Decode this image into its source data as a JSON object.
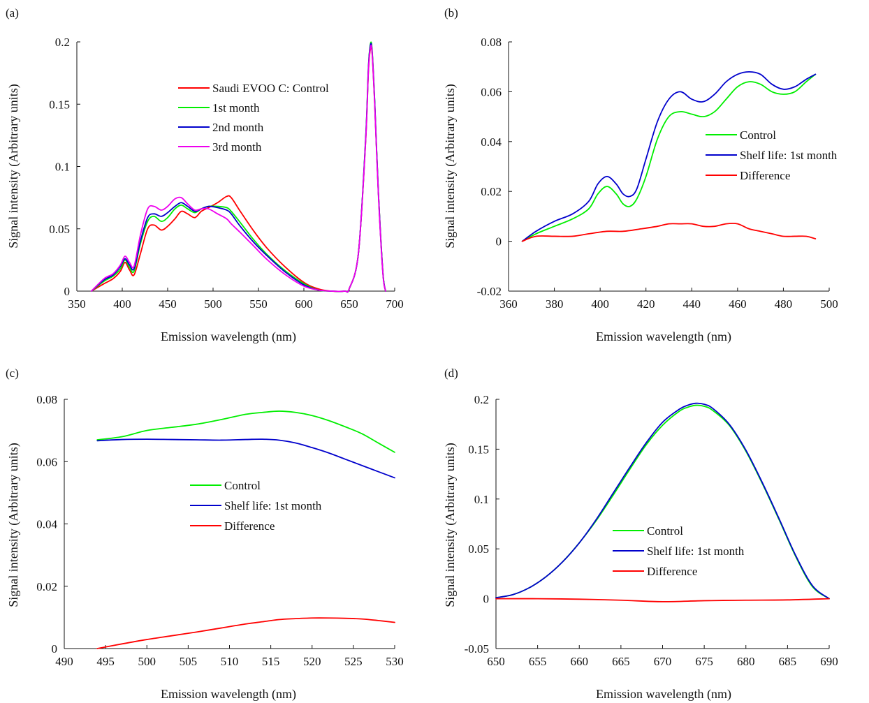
{
  "colors": {
    "control": "#ff0000",
    "first_month": "#00ee00",
    "second_month": "#0000cc",
    "third_month": "#ee00ee",
    "green": "#00ee00",
    "blue": "#0000cc",
    "red": "#ff0000"
  },
  "chart_data": [
    {
      "panel": "(a)",
      "type": "line",
      "xlabel": "Emission wavelength (nm)",
      "ylabel": "Signal intensity (Arbitrary units)",
      "xlim": [
        350,
        700
      ],
      "ylim": [
        0,
        0.2
      ],
      "xticks": [
        350,
        400,
        450,
        500,
        550,
        600,
        650,
        700
      ],
      "yticks": [
        0,
        0.05,
        0.1,
        0.15,
        0.2
      ],
      "xtick_labels": [
        "350",
        "400",
        "450",
        "500",
        "550",
        "600",
        "650",
        "700"
      ],
      "ytick_labels": [
        "0",
        "0.05",
        "0.1",
        "0.15",
        "0.2"
      ],
      "legend_position": "upper-center",
      "series": [
        {
          "name": "Saudi EVOO C: Control",
          "color": "#ff0000",
          "x": [
            366,
            380,
            390,
            398,
            403,
            408,
            413,
            420,
            428,
            435,
            443,
            450,
            458,
            465,
            472,
            480,
            487,
            495,
            505,
            515,
            520,
            530,
            545,
            560,
            580,
            600,
            615,
            630,
            645,
            650,
            660,
            668,
            671,
            673,
            675,
            678,
            682,
            687,
            690
          ],
          "y": [
            0,
            0.006,
            0.01,
            0.016,
            0.023,
            0.017,
            0.013,
            0.03,
            0.05,
            0.053,
            0.049,
            0.052,
            0.058,
            0.064,
            0.062,
            0.059,
            0.064,
            0.067,
            0.071,
            0.076,
            0.075,
            0.064,
            0.048,
            0.034,
            0.019,
            0.007,
            0.002,
            0,
            0,
            0.002,
            0.03,
            0.12,
            0.175,
            0.193,
            0.192,
            0.15,
            0.08,
            0.015,
            0
          ]
        },
        {
          "name": "1st month",
          "color": "#00ee00",
          "x": [
            366,
            380,
            390,
            398,
            403,
            408,
            413,
            420,
            428,
            435,
            443,
            450,
            458,
            465,
            472,
            480,
            487,
            495,
            505,
            515,
            520,
            530,
            545,
            560,
            580,
            600,
            615,
            630,
            645,
            650,
            660,
            668,
            671,
            673,
            675,
            678,
            682,
            687,
            690
          ],
          "y": [
            0,
            0.008,
            0.012,
            0.018,
            0.025,
            0.019,
            0.016,
            0.038,
            0.056,
            0.06,
            0.056,
            0.059,
            0.066,
            0.069,
            0.066,
            0.063,
            0.066,
            0.068,
            0.068,
            0.067,
            0.064,
            0.055,
            0.041,
            0.029,
            0.016,
            0.006,
            0.001,
            0,
            0,
            0.002,
            0.03,
            0.122,
            0.178,
            0.197,
            0.195,
            0.152,
            0.08,
            0.015,
            0
          ]
        },
        {
          "name": "2nd month",
          "color": "#0000cc",
          "x": [
            366,
            380,
            390,
            398,
            403,
            408,
            413,
            420,
            428,
            435,
            443,
            450,
            458,
            465,
            472,
            480,
            487,
            495,
            505,
            515,
            520,
            530,
            545,
            560,
            580,
            600,
            615,
            630,
            645,
            650,
            660,
            668,
            671,
            673,
            675,
            678,
            682,
            687,
            690
          ],
          "y": [
            0,
            0.009,
            0.013,
            0.02,
            0.026,
            0.021,
            0.018,
            0.04,
            0.059,
            0.062,
            0.06,
            0.063,
            0.068,
            0.071,
            0.068,
            0.064,
            0.066,
            0.068,
            0.067,
            0.065,
            0.062,
            0.052,
            0.039,
            0.028,
            0.015,
            0.005,
            0.001,
            0,
            0,
            0.002,
            0.03,
            0.122,
            0.178,
            0.196,
            0.194,
            0.152,
            0.08,
            0.015,
            0
          ]
        },
        {
          "name": "3rd month",
          "color": "#ee00ee",
          "x": [
            366,
            380,
            390,
            398,
            403,
            408,
            413,
            420,
            428,
            435,
            443,
            450,
            458,
            465,
            472,
            480,
            487,
            495,
            505,
            515,
            520,
            530,
            545,
            560,
            580,
            600,
            615,
            630,
            645,
            650,
            660,
            668,
            671,
            673,
            675,
            678,
            682,
            687,
            690
          ],
          "y": [
            0,
            0.01,
            0.014,
            0.021,
            0.028,
            0.023,
            0.02,
            0.045,
            0.066,
            0.068,
            0.065,
            0.068,
            0.074,
            0.075,
            0.07,
            0.065,
            0.066,
            0.066,
            0.062,
            0.058,
            0.054,
            0.047,
            0.036,
            0.025,
            0.013,
            0.004,
            0.001,
            0,
            0,
            0.002,
            0.03,
            0.12,
            0.176,
            0.194,
            0.193,
            0.15,
            0.078,
            0.014,
            0
          ]
        }
      ]
    },
    {
      "panel": "(b)",
      "type": "line",
      "xlabel": "Emission wavelength (nm)",
      "ylabel": "Signal intensity (Arbitrary units)",
      "xlim": [
        360,
        500
      ],
      "ylim": [
        -0.02,
        0.08
      ],
      "xticks": [
        360,
        380,
        400,
        420,
        440,
        460,
        480,
        500
      ],
      "yticks": [
        -0.02,
        0,
        0.02,
        0.04,
        0.06,
        0.08
      ],
      "xtick_labels": [
        "360",
        "380",
        "400",
        "420",
        "440",
        "460",
        "480",
        "500"
      ],
      "ytick_labels": [
        "-0.02",
        "0",
        "0.02",
        "0.04",
        "0.06",
        "0.08"
      ],
      "legend_position": "center-right",
      "series": [
        {
          "name": "Control",
          "color": "#00ee00",
          "x": [
            366,
            372,
            380,
            388,
            395,
            399,
            403,
            407,
            410,
            413,
            416,
            420,
            425,
            430,
            435,
            440,
            445,
            450,
            455,
            460,
            465,
            470,
            475,
            480,
            485,
            490,
            494
          ],
          "y": [
            0,
            0.003,
            0.006,
            0.009,
            0.013,
            0.019,
            0.022,
            0.019,
            0.015,
            0.014,
            0.017,
            0.026,
            0.041,
            0.05,
            0.052,
            0.051,
            0.05,
            0.052,
            0.057,
            0.062,
            0.064,
            0.063,
            0.06,
            0.059,
            0.06,
            0.064,
            0.067
          ]
        },
        {
          "name": "Shelf life: 1st month",
          "color": "#0000cc",
          "x": [
            366,
            372,
            380,
            388,
            395,
            399,
            403,
            407,
            410,
            413,
            416,
            420,
            425,
            430,
            435,
            440,
            445,
            450,
            455,
            460,
            465,
            470,
            475,
            480,
            485,
            490,
            494
          ],
          "y": [
            0,
            0.004,
            0.008,
            0.011,
            0.016,
            0.023,
            0.026,
            0.023,
            0.019,
            0.018,
            0.021,
            0.033,
            0.048,
            0.057,
            0.06,
            0.057,
            0.056,
            0.059,
            0.064,
            0.067,
            0.068,
            0.067,
            0.063,
            0.061,
            0.062,
            0.065,
            0.067
          ]
        },
        {
          "name": "Difference",
          "color": "#ff0000",
          "x": [
            366,
            372,
            380,
            388,
            395,
            403,
            410,
            418,
            425,
            430,
            435,
            440,
            445,
            450,
            455,
            460,
            465,
            470,
            475,
            480,
            485,
            490,
            494
          ],
          "y": [
            0,
            0.002,
            0.002,
            0.002,
            0.003,
            0.004,
            0.004,
            0.005,
            0.006,
            0.007,
            0.007,
            0.007,
            0.006,
            0.006,
            0.007,
            0.007,
            0.005,
            0.004,
            0.003,
            0.002,
            0.002,
            0.002,
            0.001
          ]
        }
      ]
    },
    {
      "panel": "(c)",
      "type": "line",
      "xlabel": "Emission wavelength (nm)",
      "ylabel": "Signal intensity (Arbitrary units)",
      "xlim": [
        490,
        530
      ],
      "ylim": [
        0,
        0.08
      ],
      "xticks": [
        490,
        495,
        500,
        505,
        510,
        515,
        520,
        525,
        530
      ],
      "yticks": [
        0,
        0.02,
        0.04,
        0.06,
        0.08
      ],
      "xtick_labels": [
        "490",
        "495",
        "500",
        "505",
        "510",
        "515",
        "520",
        "525",
        "530"
      ],
      "ytick_labels": [
        "0",
        "0.02",
        "0.04",
        "0.06",
        "0.08"
      ],
      "legend_position": "center",
      "series": [
        {
          "name": "Control",
          "color": "#00ee00",
          "x": [
            494,
            497,
            500,
            503,
            506,
            509,
            512,
            514,
            516,
            518,
            520,
            522,
            524,
            526,
            528,
            530
          ],
          "y": [
            0.067,
            0.068,
            0.07,
            0.071,
            0.072,
            0.0735,
            0.0752,
            0.0758,
            0.0762,
            0.0758,
            0.0748,
            0.0732,
            0.0712,
            0.069,
            0.066,
            0.063
          ]
        },
        {
          "name": "Shelf life: 1st month",
          "color": "#0000cc",
          "x": [
            494,
            497,
            500,
            503,
            506,
            509,
            512,
            514,
            516,
            518,
            520,
            522,
            524,
            526,
            528,
            530
          ],
          "y": [
            0.0667,
            0.0671,
            0.0672,
            0.0671,
            0.067,
            0.0669,
            0.0671,
            0.0672,
            0.0669,
            0.066,
            0.0645,
            0.0628,
            0.0608,
            0.0588,
            0.0568,
            0.0548
          ]
        },
        {
          "name": "Difference",
          "color": "#ff0000",
          "x": [
            494,
            497,
            500,
            503,
            506,
            509,
            512,
            514,
            516,
            518,
            520,
            522,
            524,
            526,
            528,
            530
          ],
          "y": [
            0,
            0.0015,
            0.0029,
            0.0041,
            0.0053,
            0.0066,
            0.0079,
            0.0086,
            0.0093,
            0.0096,
            0.0098,
            0.0098,
            0.0097,
            0.0095,
            0.009,
            0.0084
          ]
        }
      ]
    },
    {
      "panel": "(d)",
      "type": "line",
      "xlabel": "Emission wavelength (nm)",
      "ylabel": "Signal intensity (Arbitrary units)",
      "xlim": [
        650,
        690
      ],
      "ylim": [
        -0.05,
        0.2
      ],
      "xticks": [
        650,
        655,
        660,
        665,
        670,
        675,
        680,
        685,
        690
      ],
      "yticks": [
        -0.05,
        0,
        0.05,
        0.1,
        0.15,
        0.2
      ],
      "xtick_labels": [
        "650",
        "655",
        "660",
        "665",
        "670",
        "675",
        "680",
        "685",
        "690"
      ],
      "ytick_labels": [
        "-0.05",
        "0",
        "0.05",
        "0.1",
        "0.15",
        "0.2"
      ],
      "legend_position": "center",
      "series": [
        {
          "name": "Control",
          "color": "#00ee00",
          "x": [
            650,
            652,
            654,
            656,
            658,
            660,
            662,
            664,
            666,
            668,
            670,
            672,
            673,
            674,
            675,
            676,
            678,
            680,
            682,
            684,
            686,
            688,
            690
          ],
          "y": [
            0.001,
            0.004,
            0.011,
            0.022,
            0.037,
            0.056,
            0.078,
            0.103,
            0.129,
            0.154,
            0.174,
            0.188,
            0.192,
            0.194,
            0.193,
            0.189,
            0.174,
            0.148,
            0.115,
            0.079,
            0.042,
            0.012,
            0
          ]
        },
        {
          "name": "Shelf life: 1st month",
          "color": "#0000cc",
          "x": [
            650,
            652,
            654,
            656,
            658,
            660,
            662,
            664,
            666,
            668,
            670,
            672,
            673,
            674,
            675,
            676,
            678,
            680,
            682,
            684,
            686,
            688,
            690
          ],
          "y": [
            0.001,
            0.004,
            0.011,
            0.022,
            0.037,
            0.056,
            0.079,
            0.105,
            0.131,
            0.156,
            0.177,
            0.19,
            0.194,
            0.196,
            0.195,
            0.191,
            0.175,
            0.149,
            0.116,
            0.08,
            0.043,
            0.013,
            0
          ]
        },
        {
          "name": "Difference",
          "color": "#ff0000",
          "x": [
            650,
            655,
            660,
            665,
            670,
            675,
            680,
            685,
            690
          ],
          "y": [
            0,
            0,
            -0.0005,
            -0.0015,
            -0.003,
            -0.002,
            -0.0015,
            -0.0012,
            0
          ]
        }
      ]
    }
  ]
}
